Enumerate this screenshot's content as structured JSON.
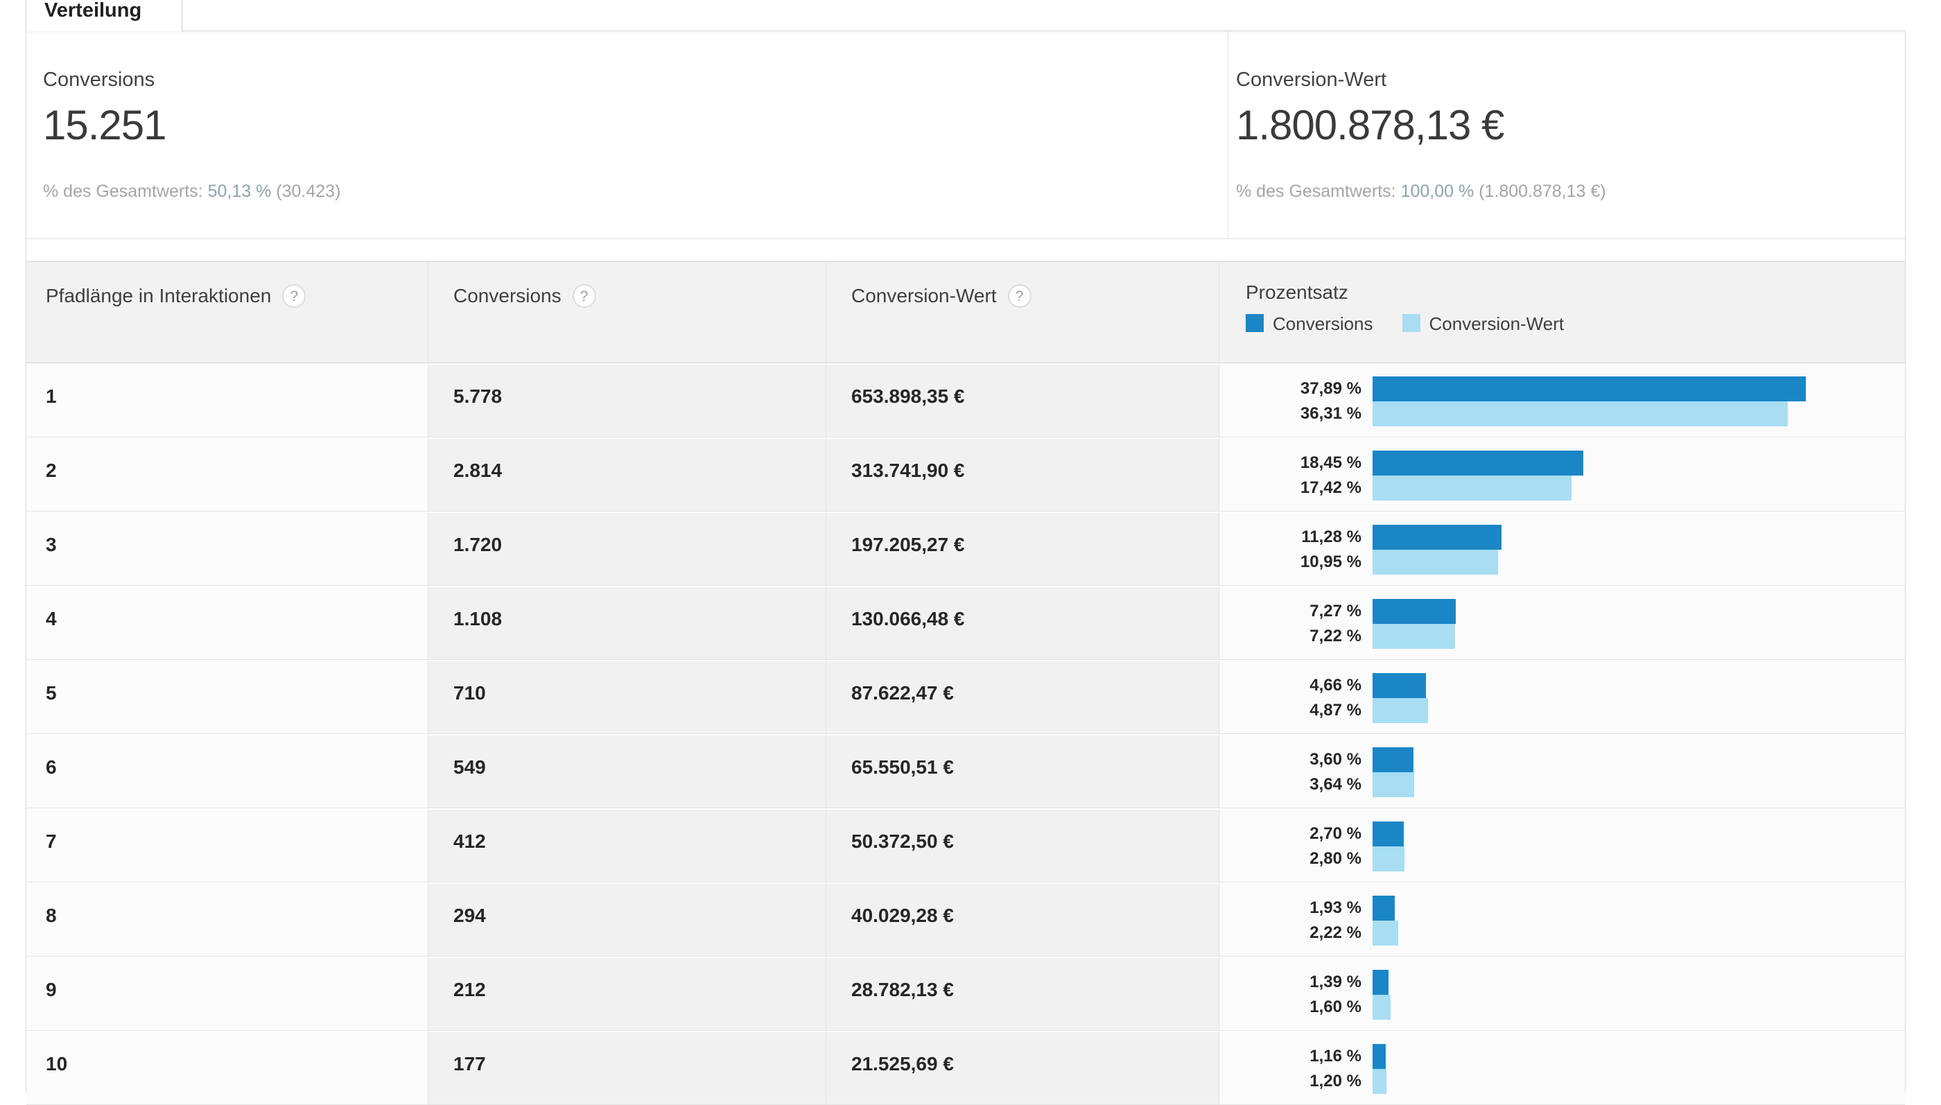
{
  "tab": {
    "label": "Verteilung"
  },
  "summary": {
    "left": {
      "label": "Conversions",
      "value": "15.251",
      "pct_prefix": "% des Gesamtwerts: ",
      "pct_value": "50,13 %",
      "pct_suffix": " (30.423)"
    },
    "right": {
      "label": "Conversion-Wert",
      "value": "1.800.878,13 €",
      "pct_prefix": "% des Gesamtwerts: ",
      "pct_value": "100,00 %",
      "pct_suffix": " (1.800.878,13 €)"
    }
  },
  "colors": {
    "bar_dark": "#1b86c6",
    "bar_light": "#a8ddf2"
  },
  "table": {
    "headers": {
      "path_length": "Pfadlänge in Interaktionen",
      "conversions": "Conversions",
      "conversion_value": "Conversion-Wert",
      "percentage": "Prozentsatz",
      "help_icon": "?"
    },
    "legend": [
      {
        "label": "Conversions",
        "color": "#1b86c6"
      },
      {
        "label": "Conversion-Wert",
        "color": "#a8ddf2"
      }
    ],
    "rows": [
      {
        "path_length": "1",
        "conversions": "5.778",
        "conversion_value": "653.898,35 €",
        "pct_conversions": 37.89,
        "pct_conversions_label": "37,89 %",
        "pct_conversion_value": 36.31,
        "pct_conversion_value_label": "36,31 %"
      },
      {
        "path_length": "2",
        "conversions": "2.814",
        "conversion_value": "313.741,90 €",
        "pct_conversions": 18.45,
        "pct_conversions_label": "18,45 %",
        "pct_conversion_value": 17.42,
        "pct_conversion_value_label": "17,42 %"
      },
      {
        "path_length": "3",
        "conversions": "1.720",
        "conversion_value": "197.205,27 €",
        "pct_conversions": 11.28,
        "pct_conversions_label": "11,28 %",
        "pct_conversion_value": 10.95,
        "pct_conversion_value_label": "10,95 %"
      },
      {
        "path_length": "4",
        "conversions": "1.108",
        "conversion_value": "130.066,48 €",
        "pct_conversions": 7.27,
        "pct_conversions_label": "7,27 %",
        "pct_conversion_value": 7.22,
        "pct_conversion_value_label": "7,22 %"
      },
      {
        "path_length": "5",
        "conversions": "710",
        "conversion_value": "87.622,47 €",
        "pct_conversions": 4.66,
        "pct_conversions_label": "4,66 %",
        "pct_conversion_value": 4.87,
        "pct_conversion_value_label": "4,87 %"
      },
      {
        "path_length": "6",
        "conversions": "549",
        "conversion_value": "65.550,51 €",
        "pct_conversions": 3.6,
        "pct_conversions_label": "3,60 %",
        "pct_conversion_value": 3.64,
        "pct_conversion_value_label": "3,64 %"
      },
      {
        "path_length": "7",
        "conversions": "412",
        "conversion_value": "50.372,50 €",
        "pct_conversions": 2.7,
        "pct_conversions_label": "2,70 %",
        "pct_conversion_value": 2.8,
        "pct_conversion_value_label": "2,80 %"
      },
      {
        "path_length": "8",
        "conversions": "294",
        "conversion_value": "40.029,28 €",
        "pct_conversions": 1.93,
        "pct_conversions_label": "1,93 %",
        "pct_conversion_value": 2.22,
        "pct_conversion_value_label": "2,22 %"
      },
      {
        "path_length": "9",
        "conversions": "212",
        "conversion_value": "28.782,13 €",
        "pct_conversions": 1.39,
        "pct_conversions_label": "1,39 %",
        "pct_conversion_value": 1.6,
        "pct_conversion_value_label": "1,60 %"
      },
      {
        "path_length": "10",
        "conversions": "177",
        "conversion_value": "21.525,69 €",
        "pct_conversions": 1.16,
        "pct_conversions_label": "1,16 %",
        "pct_conversion_value": 1.2,
        "pct_conversion_value_label": "1,20 %"
      }
    ]
  }
}
